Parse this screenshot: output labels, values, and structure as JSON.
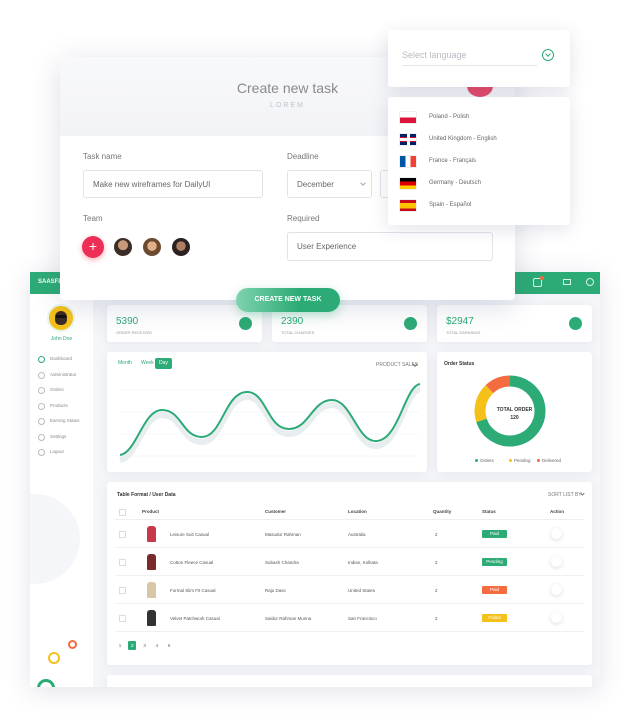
{
  "task_form": {
    "title": "Create new task",
    "subtitle": "LOREM",
    "task_name_label": "Task name",
    "task_name_value": "Make new wireframes for DailyUI",
    "deadline_label": "Deadline",
    "deadline_month": "December",
    "team_label": "Team",
    "required_label": "Required",
    "required_value": "User Experience",
    "button": "CREATE NEW TASK"
  },
  "language": {
    "placeholder": "Select language",
    "options": [
      "Poland - Polish",
      "United Kingdom - English",
      "France - Français",
      "Germany - Deutsch",
      "Spain - Español"
    ]
  },
  "dashboard": {
    "brand": "SAASFL",
    "user": "John Doe",
    "menu": [
      "Dashboard",
      "Administrator",
      "Orders",
      "Products",
      "Earning Status",
      "Settings",
      "Logout"
    ],
    "stats": [
      {
        "value": "5390",
        "label": "ORDER RECEIVED"
      },
      {
        "value": "2390",
        "label": "TOTAL CHARGES"
      },
      {
        "value": "$2947",
        "label": "TOTAL EARNINGS"
      }
    ],
    "sales": {
      "tabs": [
        "Month",
        "Week",
        "Day"
      ],
      "dropdown": "PRODUCT SALES"
    },
    "order_status": {
      "title": "Order Status",
      "center_label": "TOTAL ORDER",
      "center_value": "120",
      "segments": [
        {
          "name": "Orders",
          "color": "#2dab76",
          "value": 70
        },
        {
          "name": "Pending",
          "color": "#f5c118",
          "value": 18
        },
        {
          "name": "Delivered",
          "color": "#f36b3f",
          "value": 12
        }
      ]
    },
    "table": {
      "title": "Table Format / User Data",
      "sort": "SORT LIST BY",
      "columns": [
        "Product",
        "Customer",
        "Location",
        "Quantity",
        "Status",
        "Action"
      ],
      "rows": [
        {
          "product": "Leisure Suit Casual",
          "customer": "Masudur Rahman",
          "location": "Australia",
          "quantity": 2,
          "status": "Paid",
          "status_color": "#2dab76"
        },
        {
          "product": "Cotton Fleece Casual",
          "customer": "Subash Chandra",
          "location": "Indian, Kolkata",
          "quantity": 2,
          "status": "Pending",
          "status_color": "#2dab76"
        },
        {
          "product": "Formal Slim Fit Casual",
          "customer": "Raju Dass",
          "location": "United States",
          "quantity": 2,
          "status": "Paid",
          "status_color": "#f36b3f"
        },
        {
          "product": "Velvet Patchwork Casual",
          "customer": "Saidur Rahman Munna",
          "location": "San Francisco",
          "quantity": 2,
          "status": "Failed",
          "status_color": "#f5c118"
        }
      ]
    },
    "pagination": [
      1,
      2,
      3,
      4,
      5
    ]
  }
}
